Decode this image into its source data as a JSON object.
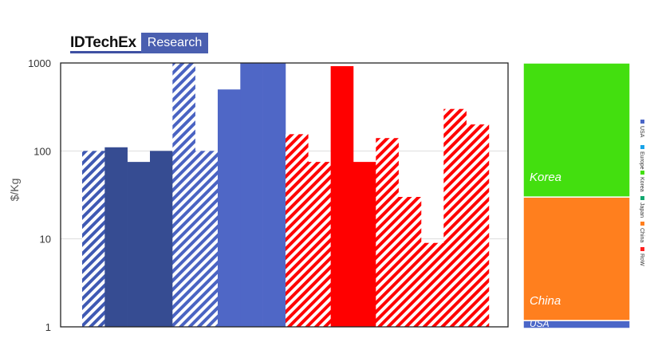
{
  "logo": {
    "brand": "IDTechEx",
    "tag": "Research"
  },
  "chart_data": [
    {
      "type": "bar",
      "title": "",
      "xlabel": "",
      "ylabel": "$/Kg",
      "yscale": "log",
      "ylim": [
        1,
        1000
      ],
      "yticks": [
        "1",
        "10",
        "100",
        "1000"
      ],
      "grid": true,
      "bars": [
        {
          "value": 100,
          "color": "#3f59b3",
          "pattern": "hatched"
        },
        {
          "value": 110,
          "color": "#364c92",
          "pattern": "solid"
        },
        {
          "value": 75,
          "color": "#364c92",
          "pattern": "solid"
        },
        {
          "value": 100,
          "color": "#364c92",
          "pattern": "solid"
        },
        {
          "value": 1000,
          "color": "#4a63c2",
          "pattern": "hatched"
        },
        {
          "value": 100,
          "color": "#4a63c2",
          "pattern": "hatched"
        },
        {
          "value": 500,
          "color": "#4f67c6",
          "pattern": "solid"
        },
        {
          "value": 1000,
          "color": "#4f67c6",
          "pattern": "solid"
        },
        {
          "value": 1000,
          "color": "#4f67c6",
          "pattern": "solid"
        },
        {
          "value": 155,
          "color": "#ff0000",
          "pattern": "hatched"
        },
        {
          "value": 75,
          "color": "#ff0000",
          "pattern": "hatched"
        },
        {
          "value": 920,
          "color": "#ff0000",
          "pattern": "solid"
        },
        {
          "value": 75,
          "color": "#ff0000",
          "pattern": "solid"
        },
        {
          "value": 140,
          "color": "#ff0000",
          "pattern": "hatched"
        },
        {
          "value": 30,
          "color": "#ff0000",
          "pattern": "hatched"
        },
        {
          "value": 9,
          "color": "#ff0000",
          "pattern": "hatched"
        },
        {
          "value": 300,
          "color": "#ff0000",
          "pattern": "hatched"
        },
        {
          "value": 200,
          "color": "#ff0000",
          "pattern": "hatched"
        }
      ]
    },
    {
      "type": "stacked-bar",
      "title": "",
      "unit": "share",
      "segments": [
        {
          "label": "USA",
          "value": 3,
          "color": "#4b66c7"
        },
        {
          "label": "China",
          "value": 47,
          "color": "#ff7f1e"
        },
        {
          "label": "Korea",
          "value": 51,
          "color": "#43df0f"
        }
      ]
    }
  ],
  "legend": [
    {
      "label": "USA",
      "color": "#4b66c7"
    },
    {
      "label": "Europe",
      "color": "#1aa3e8"
    },
    {
      "label": "Korea",
      "color": "#43df0f"
    },
    {
      "label": "Japan",
      "color": "#13a870"
    },
    {
      "label": "China",
      "color": "#ff7f1e"
    },
    {
      "label": "RoW",
      "color": "#ff1f1f"
    }
  ]
}
